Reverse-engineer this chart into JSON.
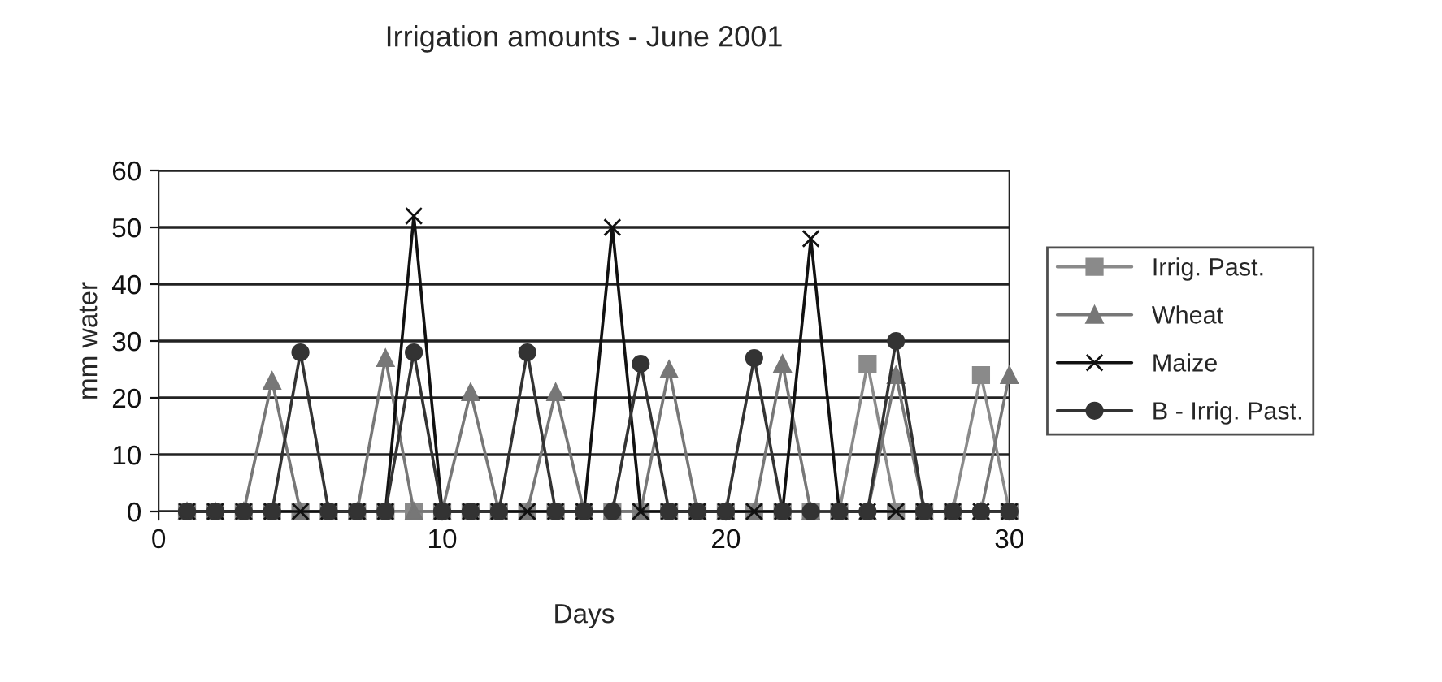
{
  "chart_data": {
    "type": "line",
    "title": "Irrigation amounts - June 2001",
    "xlabel": "Days",
    "ylabel": "mm water",
    "x": [
      1,
      2,
      3,
      4,
      5,
      6,
      7,
      8,
      9,
      10,
      11,
      12,
      13,
      14,
      15,
      16,
      17,
      18,
      19,
      20,
      21,
      22,
      23,
      24,
      25,
      26,
      27,
      28,
      29,
      30
    ],
    "series": [
      {
        "name": "Irrig. Past.",
        "color": "#8a8a8a",
        "marker": "square",
        "values": [
          0,
          0,
          0,
          0,
          0,
          0,
          0,
          0,
          0,
          0,
          0,
          0,
          0,
          0,
          0,
          0,
          0,
          0,
          0,
          0,
          0,
          0,
          0,
          0,
          26,
          0,
          0,
          0,
          24,
          0
        ]
      },
      {
        "name": "Wheat",
        "color": "#777777",
        "marker": "triangle",
        "values": [
          0,
          0,
          0,
          23,
          0,
          0,
          0,
          27,
          0,
          0,
          21,
          0,
          0,
          21,
          0,
          0,
          0,
          25,
          0,
          0,
          0,
          26,
          0,
          0,
          0,
          24,
          0,
          0,
          0,
          24
        ]
      },
      {
        "name": "Maize",
        "color": "#111111",
        "marker": "cross",
        "values": [
          0,
          0,
          0,
          0,
          0,
          0,
          0,
          0,
          52,
          0,
          0,
          0,
          0,
          0,
          0,
          50,
          0,
          0,
          0,
          0,
          0,
          0,
          48,
          0,
          0,
          0,
          0,
          0,
          0,
          0
        ]
      },
      {
        "name": "B - Irrig. Past.",
        "color": "#333333",
        "marker": "circle",
        "values": [
          0,
          0,
          0,
          0,
          28,
          0,
          0,
          0,
          28,
          0,
          0,
          0,
          28,
          0,
          0,
          0,
          26,
          0,
          0,
          0,
          27,
          0,
          0,
          0,
          0,
          30,
          0,
          0,
          0,
          0
        ]
      }
    ],
    "xlim": [
      0,
      30
    ],
    "xticks": [
      0,
      10,
      20,
      30
    ],
    "ylim": [
      0,
      60
    ],
    "yticks": [
      0,
      10,
      20,
      30,
      40,
      50,
      60
    ],
    "grid": "y",
    "legend": "right",
    "line_style": "solid"
  }
}
